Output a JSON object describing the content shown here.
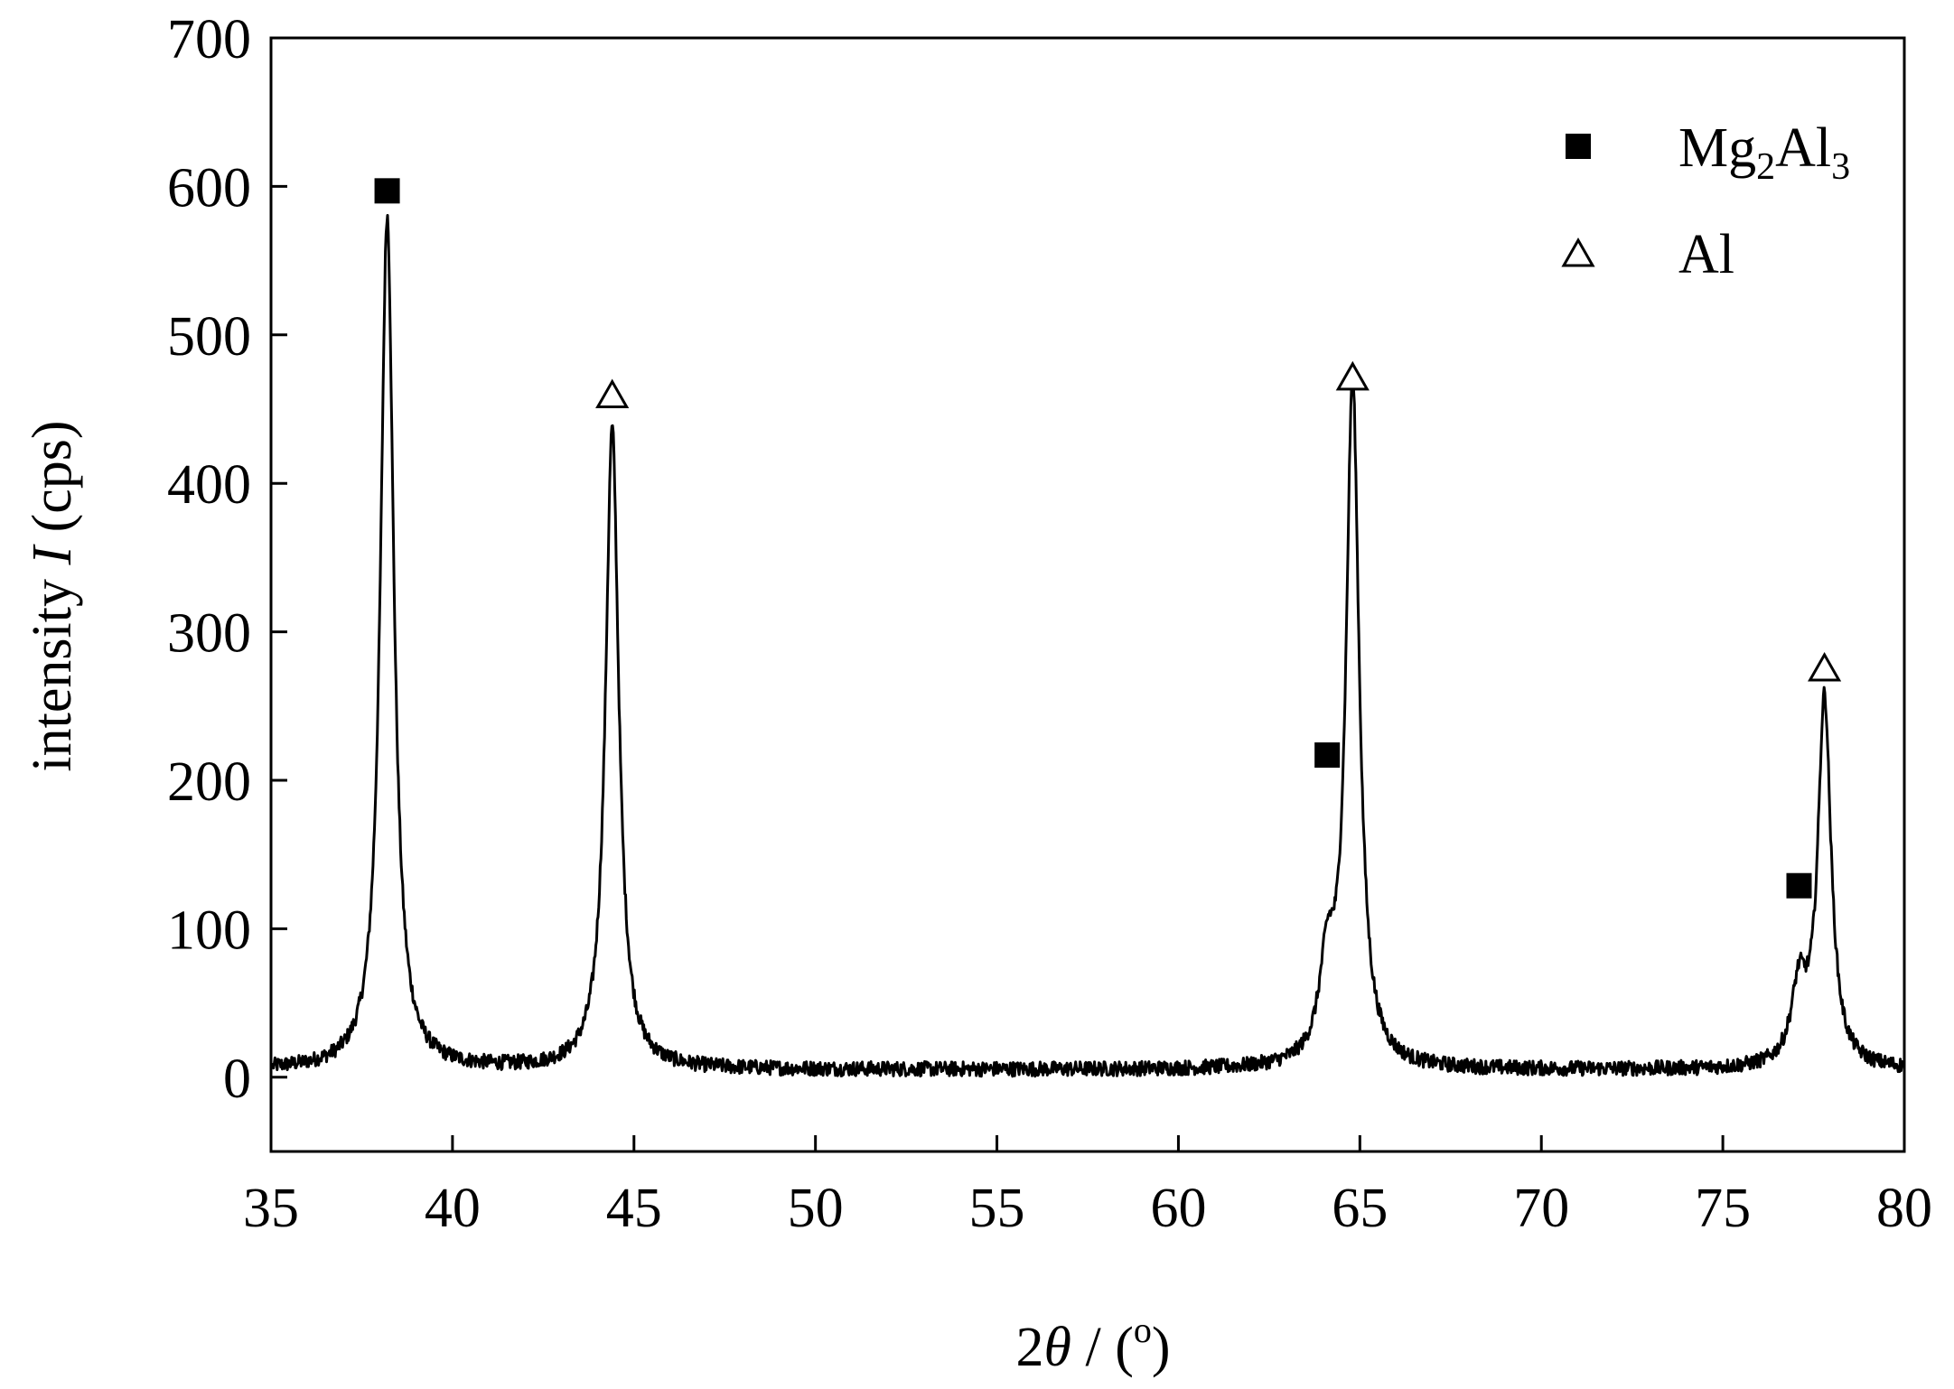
{
  "chart_data": {
    "type": "line",
    "title": "",
    "xlabel": {
      "prefix": "2",
      "symbol": "θ",
      "suffix": " / (",
      "degree": "o",
      "close": ")"
    },
    "ylabel": {
      "prefix": "intensity ",
      "symbol": "I",
      "suffix": " (cps)"
    },
    "xlim": [
      35,
      80
    ],
    "ylim": [
      -50,
      700
    ],
    "xticks": [
      35,
      40,
      45,
      50,
      55,
      60,
      65,
      70,
      75,
      80
    ],
    "yticks": [
      0,
      100,
      200,
      300,
      400,
      500,
      600,
      700
    ],
    "grid": false,
    "legend_position": "top-right",
    "colors": {
      "line": "#000000",
      "marker": "#000000"
    },
    "background_level": 5,
    "peaks": [
      {
        "x": 38.2,
        "height": 575,
        "width": 0.22
      },
      {
        "x": 44.4,
        "height": 432,
        "width": 0.22
      },
      {
        "x": 64.1,
        "height": 60,
        "width": 0.25
      },
      {
        "x": 64.8,
        "height": 460,
        "width": 0.22
      },
      {
        "x": 77.1,
        "height": 50,
        "width": 0.25
      },
      {
        "x": 77.8,
        "height": 248,
        "width": 0.22
      }
    ],
    "series": [
      {
        "name": "Mg2Al3",
        "legend_main": "Mg",
        "legend_parts": [
          {
            "text": "Mg",
            "sub": false
          },
          {
            "text": "2",
            "sub": true
          },
          {
            "text": "Al",
            "sub": false
          },
          {
            "text": "3",
            "sub": true
          }
        ],
        "marker": "filled-square",
        "markers": [
          {
            "x": 38.2,
            "y": 597
          },
          {
            "x": 64.1,
            "y": 217
          },
          {
            "x": 77.1,
            "y": 129
          }
        ]
      },
      {
        "name": "Al",
        "legend_parts": [
          {
            "text": "Al",
            "sub": false
          }
        ],
        "marker": "open-triangle",
        "markers": [
          {
            "x": 44.4,
            "y": 460
          },
          {
            "x": 64.8,
            "y": 472
          },
          {
            "x": 77.8,
            "y": 276
          }
        ]
      }
    ]
  }
}
